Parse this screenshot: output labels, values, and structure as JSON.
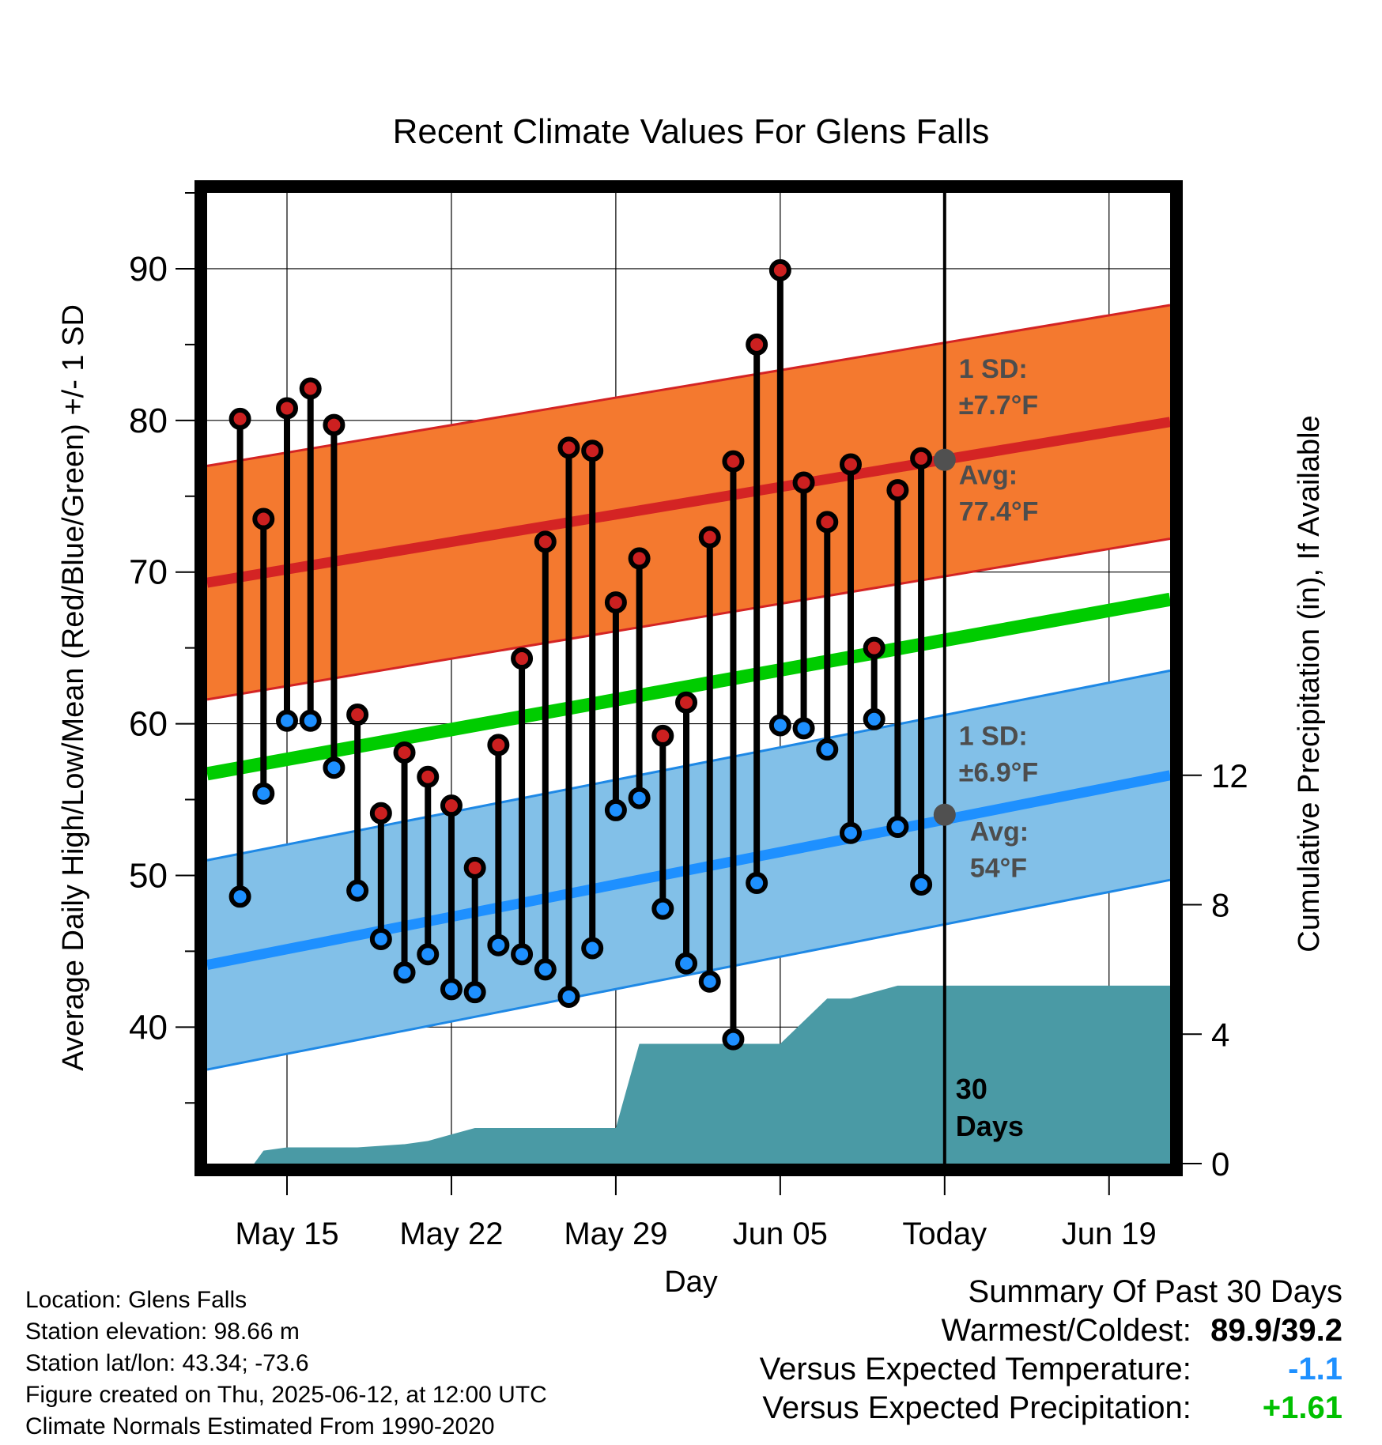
{
  "chart_data": {
    "type": "line",
    "title": "Recent Climate Values For Glens Falls",
    "xlabel": "Day",
    "ylabel": "Average Daily High/Low/Mean (Red/Blue/Green) +/- 1 SD",
    "y2label": "Cumulative Precipitation (in), If Available",
    "ylim": [
      31,
      95
    ],
    "y2lim": [
      0,
      30
    ],
    "x_tick_labels": [
      "May 15",
      "May 22",
      "May 29",
      "Jun 05",
      "Today",
      "Jun 19"
    ],
    "x_tick_days": [
      15,
      22,
      29,
      36,
      43,
      50
    ],
    "y_ticks": [
      40,
      50,
      60,
      70,
      80,
      90
    ],
    "y2_ticks": [
      0,
      4,
      8,
      12
    ],
    "x_range_days": [
      11.6,
      52.6
    ],
    "today_day": 43,
    "today_label": "30 Days",
    "days": [
      13,
      14,
      15,
      16,
      17,
      18,
      19,
      20,
      21,
      22,
      23,
      24,
      25,
      26,
      27,
      28,
      29,
      30,
      31,
      32,
      33,
      34,
      35,
      36,
      37,
      38,
      39,
      40,
      41,
      42
    ],
    "highs": [
      80.1,
      73.5,
      80.8,
      82.1,
      79.7,
      60.6,
      54.1,
      58.1,
      56.5,
      54.6,
      50.5,
      58.6,
      64.3,
      72.0,
      78.2,
      78.0,
      68.0,
      70.9,
      59.2,
      61.4,
      72.3,
      77.3,
      85.0,
      89.9,
      75.9,
      73.3,
      77.1,
      65.0,
      75.4,
      77.5
    ],
    "lows": [
      48.6,
      55.4,
      60.2,
      60.2,
      57.1,
      49.0,
      45.8,
      43.6,
      44.8,
      42.5,
      42.3,
      45.4,
      44.8,
      43.8,
      42.0,
      45.2,
      54.3,
      55.1,
      47.8,
      44.2,
      43.0,
      39.2,
      49.5,
      59.9,
      59.7,
      58.3,
      52.8,
      60.3,
      53.2,
      49.4
    ],
    "normals": {
      "high_start": 69.3,
      "high_end": 79.9,
      "low_start": 44.1,
      "low_end": 56.6,
      "mean_start": 56.7,
      "mean_end": 68.2,
      "high_sd": 7.7,
      "low_sd": 6.9
    },
    "precip": {
      "days": [
        13.6,
        14,
        15,
        16,
        17,
        18,
        19,
        20,
        21,
        22,
        23,
        24,
        25,
        26,
        27,
        28,
        29,
        30,
        31,
        32,
        33,
        34,
        35,
        36,
        37,
        38,
        39,
        40,
        41,
        42,
        52.6
      ],
      "values": [
        0.0,
        0.4,
        0.5,
        0.5,
        0.5,
        0.5,
        0.55,
        0.6,
        0.7,
        0.9,
        1.1,
        1.1,
        1.1,
        1.1,
        1.1,
        1.1,
        1.1,
        3.7,
        3.7,
        3.7,
        3.7,
        3.7,
        3.7,
        3.7,
        4.4,
        5.1,
        5.1,
        5.3,
        5.5,
        5.5,
        5.5
      ]
    },
    "annotations": {
      "high_sd_label1": "1 SD:",
      "high_sd_label2": "±7.7°F",
      "high_avg_label1": "Avg:",
      "high_avg_label2": "77.4°F",
      "low_sd_label1": "1 SD:",
      "low_sd_label2": "±6.9°F",
      "low_avg_label1": "Avg:",
      "low_avg_label2": "54°F",
      "today_high_avg": 77.4,
      "today_low_avg": 54.0
    }
  },
  "footer": {
    "location": "Location: Glens Falls",
    "elevation": "Station elevation: 98.66 m",
    "latlon": "Station lat/lon: 43.34; -73.6",
    "created": "Figure created on Thu, 2025-06-12, at 12:00 UTC",
    "normals": "Climate Normals Estimated From 1990-2020"
  },
  "summary": {
    "title": "Summary Of Past 30 Days",
    "warmest_label": "Warmest/Coldest:",
    "warmest_value": "89.9/39.2",
    "temp_label": "Versus Expected Temperature:",
    "temp_value": "-1.1",
    "precip_label": "Versus Expected Precipitation:",
    "precip_value": "+1.61",
    "colors": {
      "temp": "#1e90ff",
      "precip": "#00c000"
    }
  },
  "colors": {
    "high_band": "#f4792f",
    "high_line": "#d42424",
    "low_band": "#82c0e8",
    "low_line": "#1e90ff",
    "mean_line": "#00cc00",
    "precip": "#4a9aa5",
    "high_dot": "#cc2020",
    "low_dot": "#1e90ff",
    "avg_dot": "#505050"
  }
}
